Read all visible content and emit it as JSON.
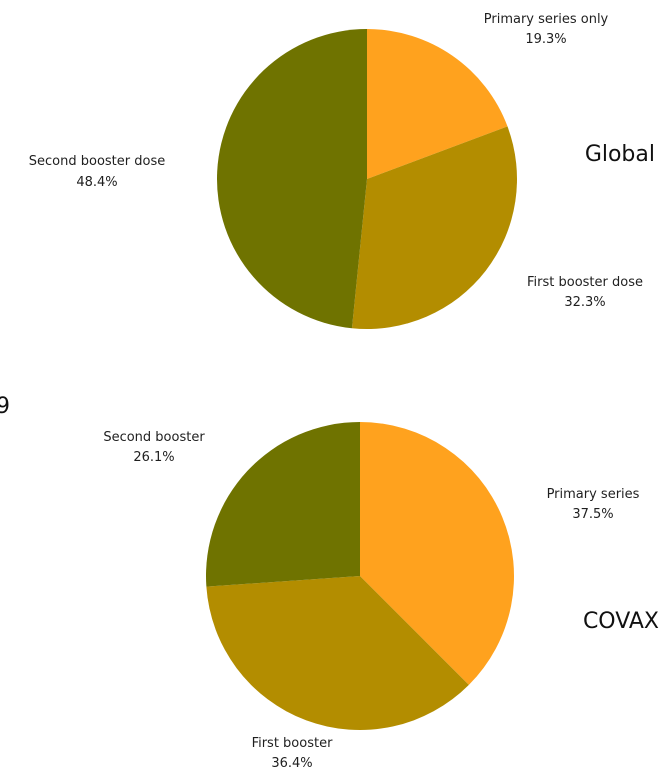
{
  "colors": {
    "primary": "#FFA21E",
    "first_booster": "#B38D00",
    "second_booster": "#6F7300"
  },
  "stray_text": "9",
  "chart_data": [
    {
      "type": "pie",
      "title": "Global",
      "slices": [
        {
          "label": "Primary series only",
          "value": 19.3,
          "value_label": "19.3%",
          "color": "#FFA21E"
        },
        {
          "label": "First booster dose",
          "value": 32.3,
          "value_label": "32.3%",
          "color": "#B38D00"
        },
        {
          "label": "Second booster dose",
          "value": 48.4,
          "value_label": "48.4%",
          "color": "#6F7300"
        }
      ]
    },
    {
      "type": "pie",
      "title": "COVAX",
      "slices": [
        {
          "label": "Primary series",
          "value": 37.5,
          "value_label": "37.5%",
          "color": "#FFA21E"
        },
        {
          "label": "First booster",
          "value": 36.4,
          "value_label": "36.4%",
          "color": "#B38D00"
        },
        {
          "label": "Second booster",
          "value": 26.1,
          "value_label": "26.1%",
          "color": "#6F7300"
        }
      ]
    }
  ]
}
